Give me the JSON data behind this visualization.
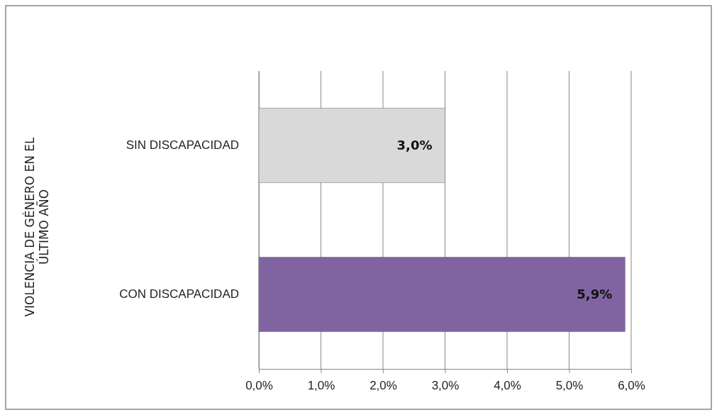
{
  "chart_data": {
    "type": "bar",
    "orientation": "horizontal",
    "annotations": [
      "VIOLENCIA DE GÉNERO EN EL ÚLTIMO AÑO"
    ],
    "categories": [
      "SIN DISCAPACIDAD",
      "CON DISCAPACIDAD"
    ],
    "values": [
      3.0,
      5.9
    ],
    "colors": [
      "#d9d9d9",
      "#8064a2"
    ],
    "value_labels": [
      "3,0%",
      "5,9%"
    ],
    "xlim": [
      0,
      6
    ],
    "xticks": [
      {
        "value": 0,
        "label": "0,0%"
      },
      {
        "value": 1,
        "label": "1,0%"
      },
      {
        "value": 2,
        "label": "2,0%"
      },
      {
        "value": 3,
        "label": "3,0%"
      },
      {
        "value": 4,
        "label": "4,0%"
      },
      {
        "value": 5,
        "label": "5,0%"
      },
      {
        "value": 6,
        "label": "6,0%"
      }
    ],
    "grid": "x"
  }
}
